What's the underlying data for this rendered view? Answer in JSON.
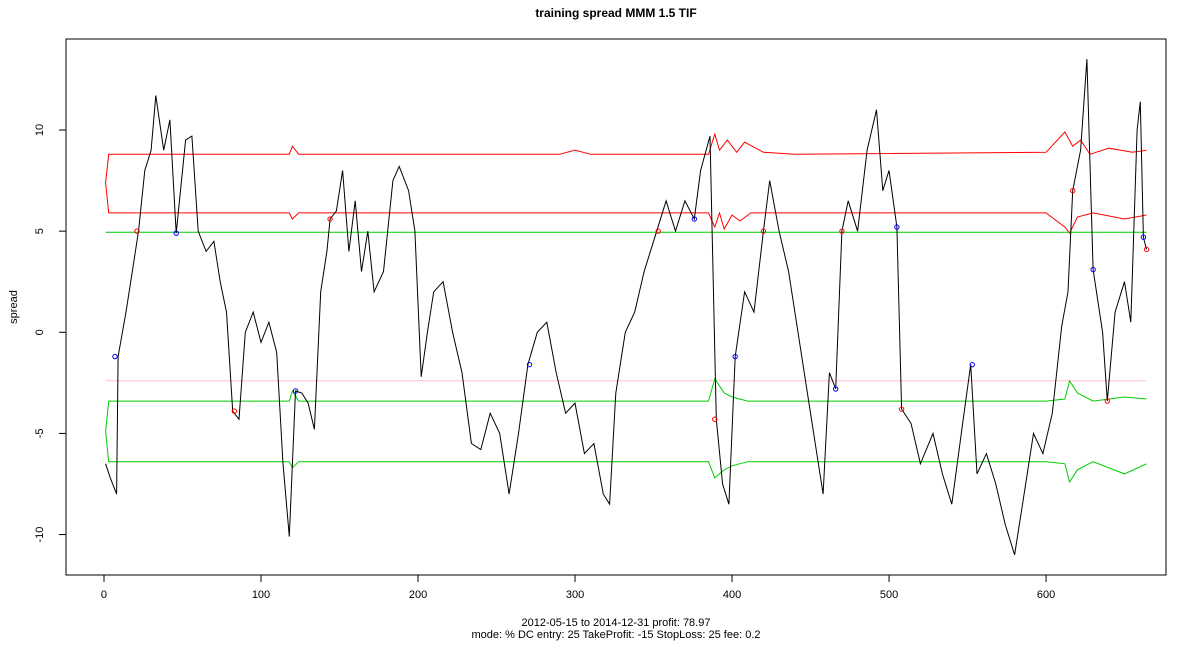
{
  "chart_data": {
    "type": "line",
    "title": "training spread MMM 1.5 TIF",
    "subtitle": [
      "2012-05-15 to 2014-12-31 profit: 78.97",
      "mode: % DC entry: 25 TakeProfit: -15 StopLoss: 25 fee: 0.2"
    ],
    "y_label": "spread",
    "xlim": [
      -24.2,
      676.4
    ],
    "ylim": [
      -12,
      14.5
    ],
    "xticks": [
      0,
      100,
      200,
      300,
      400,
      500,
      600
    ],
    "yticks": [
      -10,
      -5,
      0,
      5,
      10
    ],
    "series": [
      {
        "type": "line",
        "color": "#ff0000",
        "x": [
          1,
          3,
          118,
          120,
          124,
          290,
          300,
          310,
          385,
          389,
          392,
          397,
          403,
          408,
          420,
          440,
          600,
          612,
          617,
          622,
          628,
          640,
          655,
          664
        ],
        "values": [
          7.4,
          8.8,
          8.8,
          9.2,
          8.8,
          8.8,
          9.0,
          8.8,
          8.8,
          9.8,
          9.0,
          9.5,
          8.9,
          9.4,
          8.9,
          8.8,
          8.9,
          9.9,
          9.2,
          9.5,
          8.8,
          9.1,
          8.9,
          9.0
        ]
      },
      {
        "type": "line",
        "color": "#ff0000",
        "x": [
          1,
          3,
          118,
          120,
          124,
          300,
          385,
          389,
          392,
          395,
          400,
          405,
          412,
          420,
          600,
          612,
          615,
          620,
          630,
          650,
          664
        ],
        "values": [
          7.4,
          5.9,
          5.9,
          5.6,
          5.9,
          5.9,
          5.9,
          5.2,
          5.9,
          5.1,
          5.8,
          5.5,
          5.9,
          5.9,
          5.9,
          5.2,
          4.9,
          5.7,
          5.9,
          5.6,
          5.8
        ]
      },
      {
        "type": "line",
        "color": "#00cc00",
        "x": [
          1,
          664
        ],
        "values": [
          4.95,
          4.95
        ]
      },
      {
        "type": "line",
        "color": "#ffc0cb",
        "x": [
          1,
          664
        ],
        "values": [
          -2.4,
          -2.4
        ]
      },
      {
        "type": "line",
        "color": "#00cc00",
        "x": [
          1,
          3,
          118,
          120,
          124,
          300,
          385,
          389,
          395,
          400,
          410,
          600,
          612,
          615,
          620,
          630,
          650,
          664
        ],
        "values": [
          -4.9,
          -3.4,
          -3.4,
          -2.9,
          -3.4,
          -3.4,
          -3.4,
          -2.3,
          -3.0,
          -3.2,
          -3.4,
          -3.4,
          -3.3,
          -2.4,
          -3.0,
          -3.4,
          -3.2,
          -3.3
        ]
      },
      {
        "type": "line",
        "color": "#00cc00",
        "x": [
          1,
          3,
          118,
          120,
          124,
          300,
          385,
          389,
          395,
          400,
          410,
          600,
          612,
          615,
          620,
          630,
          650,
          664
        ],
        "values": [
          -4.9,
          -6.4,
          -6.4,
          -6.7,
          -6.4,
          -6.4,
          -6.4,
          -7.2,
          -6.8,
          -6.6,
          -6.4,
          -6.4,
          -6.5,
          -7.4,
          -6.8,
          -6.4,
          -7.0,
          -6.5
        ]
      },
      {
        "type": "line",
        "color": "#000000",
        "x": [
          1,
          4,
          8,
          9,
          14,
          18,
          22,
          26,
          30,
          33,
          38,
          42,
          46,
          52,
          56,
          60,
          65,
          70,
          74,
          78,
          82,
          86,
          90,
          95,
          100,
          105,
          110,
          114,
          118,
          122,
          126,
          130,
          134,
          138,
          142,
          144,
          148,
          152,
          156,
          160,
          164,
          168,
          172,
          178,
          184,
          188,
          194,
          198,
          202,
          206,
          210,
          216,
          222,
          228,
          234,
          240,
          246,
          252,
          258,
          264,
          270,
          276,
          282,
          288,
          294,
          300,
          306,
          312,
          318,
          322,
          326,
          332,
          338,
          344,
          352,
          358,
          364,
          370,
          376,
          380,
          386,
          390,
          394,
          398,
          402,
          408,
          414,
          420,
          424,
          430,
          436,
          442,
          448,
          454,
          458,
          462,
          466,
          470,
          474,
          480,
          486,
          492,
          496,
          500,
          505,
          508,
          514,
          520,
          528,
          534,
          540,
          546,
          552,
          556,
          562,
          568,
          574,
          580,
          586,
          592,
          598,
          604,
          610,
          614,
          617,
          622,
          626,
          630,
          636,
          639,
          644,
          650,
          654,
          658,
          660,
          662,
          664
        ],
        "values": [
          -6.5,
          -7.2,
          -8.0,
          -1.2,
          1.0,
          3.0,
          5.0,
          8.0,
          9.0,
          11.7,
          9.0,
          10.5,
          4.9,
          9.5,
          9.7,
          5.0,
          4.0,
          4.5,
          2.5,
          1.0,
          -3.9,
          -4.3,
          0.0,
          1.0,
          -0.5,
          0.5,
          -1.0,
          -6.5,
          -10.1,
          -2.9,
          -3.0,
          -3.5,
          -4.8,
          2.0,
          4.0,
          5.6,
          6.0,
          8.0,
          4.0,
          6.5,
          3.0,
          5.0,
          2.0,
          3.0,
          7.5,
          8.2,
          7.0,
          5.0,
          -2.2,
          0.0,
          2.0,
          2.5,
          0.0,
          -2.0,
          -5.5,
          -5.8,
          -4.0,
          -5.0,
          -8.0,
          -5.0,
          -1.6,
          0.0,
          0.5,
          -2.0,
          -4.0,
          -3.5,
          -6.0,
          -5.5,
          -8.0,
          -8.5,
          -3.0,
          0.0,
          1.0,
          3.0,
          5.0,
          6.5,
          5.0,
          6.5,
          5.6,
          8.0,
          9.7,
          -4.3,
          -7.5,
          -8.5,
          -1.2,
          2.0,
          1.0,
          5.0,
          7.5,
          5.0,
          3.0,
          0.0,
          -3.0,
          -6.0,
          -8.0,
          -2.0,
          -2.8,
          5.0,
          6.5,
          5.0,
          9.0,
          11.0,
          7.0,
          8.0,
          5.2,
          -3.8,
          -4.5,
          -6.5,
          -5.0,
          -7.0,
          -8.5,
          -5.0,
          -1.6,
          -7.0,
          -6.0,
          -7.5,
          -9.5,
          -11.0,
          -8.0,
          -5.0,
          -6.0,
          -4.0,
          0.3,
          2.0,
          7.0,
          9.0,
          13.5,
          3.1,
          0.0,
          -3.4,
          1.0,
          2.5,
          0.5,
          10.0,
          11.4,
          4.7,
          4.1
        ]
      },
      {
        "type": "scatter",
        "color": "#0000ff",
        "x": [
          7,
          46,
          122,
          271,
          376,
          402,
          466,
          505,
          553,
          630,
          662
        ],
        "values": [
          -1.2,
          4.9,
          -2.9,
          -1.6,
          5.6,
          -1.2,
          -2.8,
          5.2,
          -1.6,
          3.1,
          4.7
        ]
      },
      {
        "type": "scatter",
        "color": "#ff0000",
        "x": [
          21,
          83,
          144,
          353,
          389,
          420,
          470,
          508,
          617,
          639,
          664
        ],
        "values": [
          5.0,
          -3.9,
          5.6,
          5.0,
          -4.3,
          5.0,
          5.0,
          -3.8,
          7.0,
          -3.4,
          4.1
        ]
      }
    ]
  }
}
